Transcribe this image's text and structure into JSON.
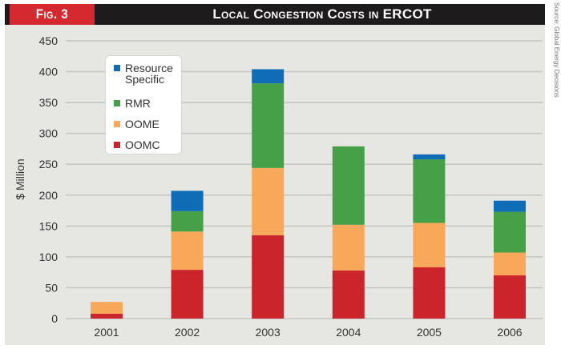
{
  "header": {
    "figure_label": "Fig. 3",
    "title": "Local Congestion Costs in ERCOT"
  },
  "source_note": "Source: Global Energy Decisions",
  "colors": {
    "header_bg": "#1e1b1c",
    "figure_label_bg": "#d42a2f",
    "panel_bg": "#e6e6e2",
    "Resource Specific": "#0f6cb6",
    "RMR": "#46a047",
    "OOME": "#f9a85a",
    "OOMC": "#cc242b"
  },
  "chart_data": {
    "type": "bar",
    "stacked": true,
    "title": "Local Congestion Costs in ERCOT",
    "xlabel": "",
    "ylabel": "$ Million",
    "ylim": [
      0,
      450
    ],
    "yticks": [
      0,
      50,
      100,
      150,
      200,
      250,
      300,
      350,
      400,
      450
    ],
    "grid": true,
    "legend_position": "top-left",
    "categories": [
      "2001",
      "2002",
      "2003",
      "2004",
      "2005",
      "2006"
    ],
    "series": [
      {
        "name": "OOMC",
        "values": [
          8,
          79,
          135,
          78,
          83,
          70
        ]
      },
      {
        "name": "OOME",
        "values": [
          19,
          62,
          109,
          74,
          72,
          37
        ]
      },
      {
        "name": "RMR",
        "values": [
          0,
          33,
          137,
          127,
          103,
          66
        ]
      },
      {
        "name": "Resource Specific",
        "values": [
          0,
          33,
          23,
          0,
          8,
          18
        ]
      }
    ],
    "legend_order": [
      "Resource Specific",
      "RMR",
      "OOME",
      "OOMC"
    ]
  }
}
